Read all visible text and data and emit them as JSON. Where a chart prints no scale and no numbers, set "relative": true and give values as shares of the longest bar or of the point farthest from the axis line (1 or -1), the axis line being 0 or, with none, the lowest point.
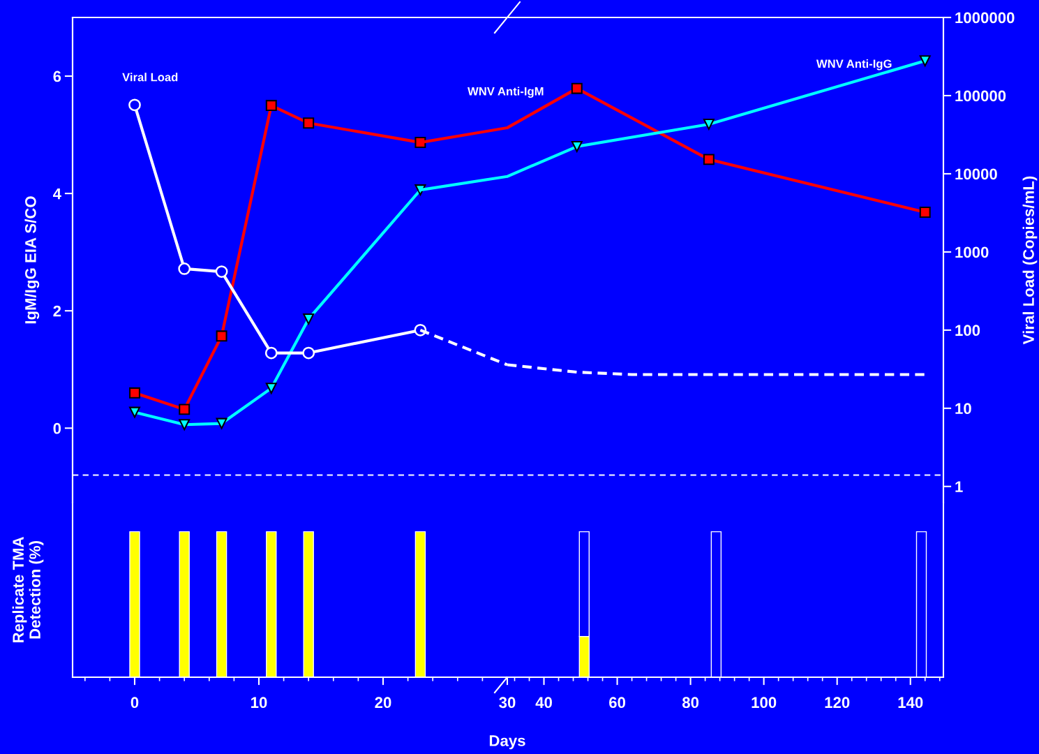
{
  "chart_data": [
    {
      "type": "line",
      "ylabel": "IgM/IgG EIA S/CO",
      "xlim": [
        -5,
        30
      ],
      "tick_labels": "y",
      "ylim": [
        -1.27,
        7
      ],
      "yticks": [
        0,
        2,
        4,
        6
      ],
      "y2lim": [
        0.62,
        1000000
      ],
      "log": "y2",
      "grid": false,
      "ref_lines": [
        {
          "axis": "y",
          "value": -0.8,
          "color": "#ffffff",
          "line_style": "dashed"
        }
      ],
      "series": [
        {
          "name": "Viral Load",
          "color": "#ffffff",
          "axis": "y2",
          "marker": "circle",
          "line_style": "solid",
          "x": [
            0,
            4,
            7,
            11,
            14,
            23
          ],
          "values": [
            76000,
            610,
            560,
            51,
            51,
            100
          ]
        },
        {
          "color": "#ffffff",
          "axis": "y2",
          "marker": "none",
          "line_style": "dashed",
          "x": [
            23,
            30
          ],
          "values": [
            100,
            36
          ]
        },
        {
          "color": "#ff0000",
          "axis": "y",
          "marker": "square",
          "line_style": "solid",
          "x": [
            0,
            4,
            7,
            11,
            14,
            23
          ],
          "values": [
            0.6,
            0.32,
            1.57,
            5.5,
            5.2,
            4.87
          ]
        },
        {
          "color": "#ff0000",
          "axis": "y",
          "marker": "none",
          "line_style": "solid",
          "x": [
            23,
            30
          ],
          "values": [
            4.87,
            5.12
          ]
        },
        {
          "color": "#00ffff",
          "axis": "y",
          "marker": "triangle",
          "line_style": "solid",
          "x": [
            0,
            4,
            7,
            11,
            14,
            23
          ],
          "values": [
            0.27,
            0.06,
            0.08,
            0.68,
            1.86,
            4.06
          ]
        },
        {
          "color": "#00ffff",
          "axis": "y",
          "marker": "none",
          "line_style": "solid",
          "x": [
            23,
            30
          ],
          "values": [
            4.06,
            4.29
          ]
        }
      ]
    },
    {
      "type": "line",
      "y2label": "Viral Load (Copies/mL)",
      "xlim": [
        30,
        149
      ],
      "tick_labels": "y2",
      "ylim": [
        -1.27,
        7
      ],
      "y2lim": [
        0.62,
        1000000
      ],
      "y2ticks": [
        1,
        10,
        100,
        1000,
        10000,
        100000,
        1000000
      ],
      "log": "y2",
      "grid": false,
      "ref_lines": [
        {
          "axis": "y",
          "value": -0.8,
          "color": "#ffffff",
          "line_style": "dashed"
        }
      ],
      "series": [
        {
          "color": "#ffffff",
          "axis": "y2",
          "marker": "none",
          "line_style": "dashed",
          "x": [
            30,
            49,
            64,
            100,
            144
          ],
          "values": [
            36,
            29,
            27,
            27,
            27
          ]
        },
        {
          "color": "#ff0000",
          "axis": "y",
          "line_style": "solid",
          "x": [
            30,
            49
          ],
          "values": [
            5.12,
            5.79
          ]
        },
        {
          "name": "WNV Anti-IgM",
          "color": "#ff0000",
          "axis": "y",
          "marker": "square",
          "line_style": "solid",
          "x": [
            49,
            85,
            144
          ],
          "values": [
            5.79,
            4.58,
            3.68
          ]
        },
        {
          "color": "#00ffff",
          "axis": "y",
          "line_style": "solid",
          "x": [
            30,
            49
          ],
          "values": [
            4.29,
            4.8
          ]
        },
        {
          "name": "WNV Anti-IgG",
          "color": "#00ffff",
          "axis": "y",
          "marker": "triangle",
          "line_style": "solid",
          "x": [
            49,
            85,
            144
          ],
          "values": [
            4.8,
            5.18,
            6.26
          ]
        }
      ]
    },
    {
      "type": "bar",
      "xlabel": "Days",
      "ylabel": "Replicate TMA\nDetection (%)",
      "relative": true,
      "stacked": true,
      "xlim": [
        -5,
        30
      ],
      "xticks": [
        0,
        10,
        20,
        30
      ],
      "tick_labels": "x",
      "x": [
        0,
        4,
        7,
        11,
        14,
        23
      ],
      "series": [
        {
          "color": "#ffff00",
          "values": [
            1,
            1,
            1,
            1,
            1,
            1
          ]
        }
      ]
    },
    {
      "type": "bar",
      "relative": true,
      "stacked": true,
      "xlim": [
        30,
        149
      ],
      "xticks": [
        40,
        60,
        80,
        100,
        120,
        140
      ],
      "tick_labels": "x",
      "x": [
        51,
        87,
        143
      ],
      "series": [
        {
          "color": "#ffff00",
          "values": [
            0.28,
            0,
            0
          ]
        },
        {
          "color": "#0000ff",
          "values": [
            0.72,
            1,
            1
          ]
        }
      ]
    }
  ]
}
